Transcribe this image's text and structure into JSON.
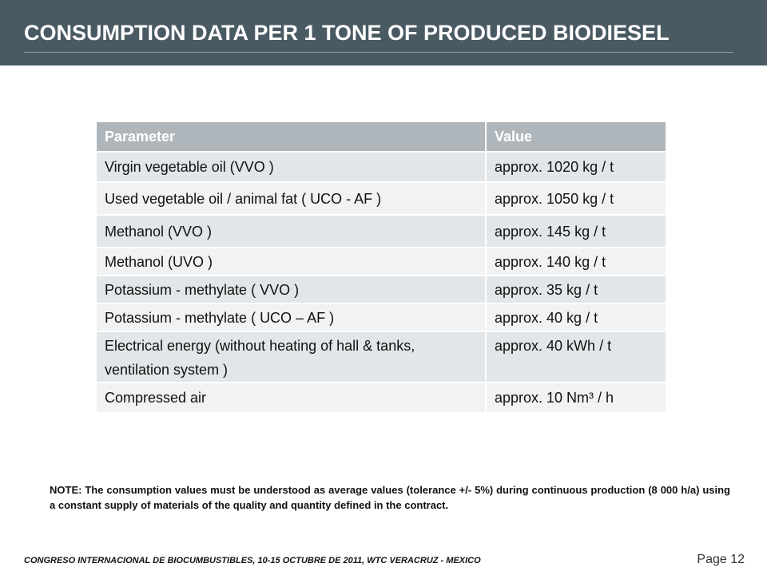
{
  "title": "CONSUMPTION DATA PER 1 TONE OF PRODUCED BIODIESEL",
  "table": {
    "headers": [
      "Parameter",
      "Value"
    ],
    "rows": [
      [
        "Virgin vegetable oil (VVO )",
        "approx. 1020 kg / t"
      ],
      [
        "Used vegetable oil / animal fat ( UCO - AF )",
        "approx. 1050 kg / t"
      ],
      [
        "Methanol (VVO )",
        "approx. 145 kg / t"
      ],
      [
        "Methanol (UVO )",
        "approx. 140 kg / t"
      ],
      [
        "Potassium - methylate ( VVO )",
        "approx. 35 kg / t"
      ],
      [
        "Potassium - methylate ( UCO – AF )",
        "approx. 40 kg / t"
      ],
      [
        "Electrical energy (without heating of hall & tanks, ventilation system )",
        "approx. 40 kWh / t"
      ],
      [
        "Compressed air",
        "approx. 10 Nm³ / h"
      ]
    ]
  },
  "note": "NOTE: The consumption values must be understood as average values (tolerance +/- 5%) during continuous production (8 000 h/a) using a constant supply of materials of the quality and quantity defined in the contract.",
  "footer": "CONGRESO INTERNACIONAL DE BIOCUMBUSTIBLES, 10-15 OCTUBRE DE 2011, WTC VERACRUZ - MEXICO",
  "page": "Page 12",
  "colors": {
    "header_bg": "#4a5a63",
    "table_header_bg": "#aeb6bb",
    "row_odd_bg": "#e3e6e8",
    "row_even_bg": "#f1f2f3"
  }
}
